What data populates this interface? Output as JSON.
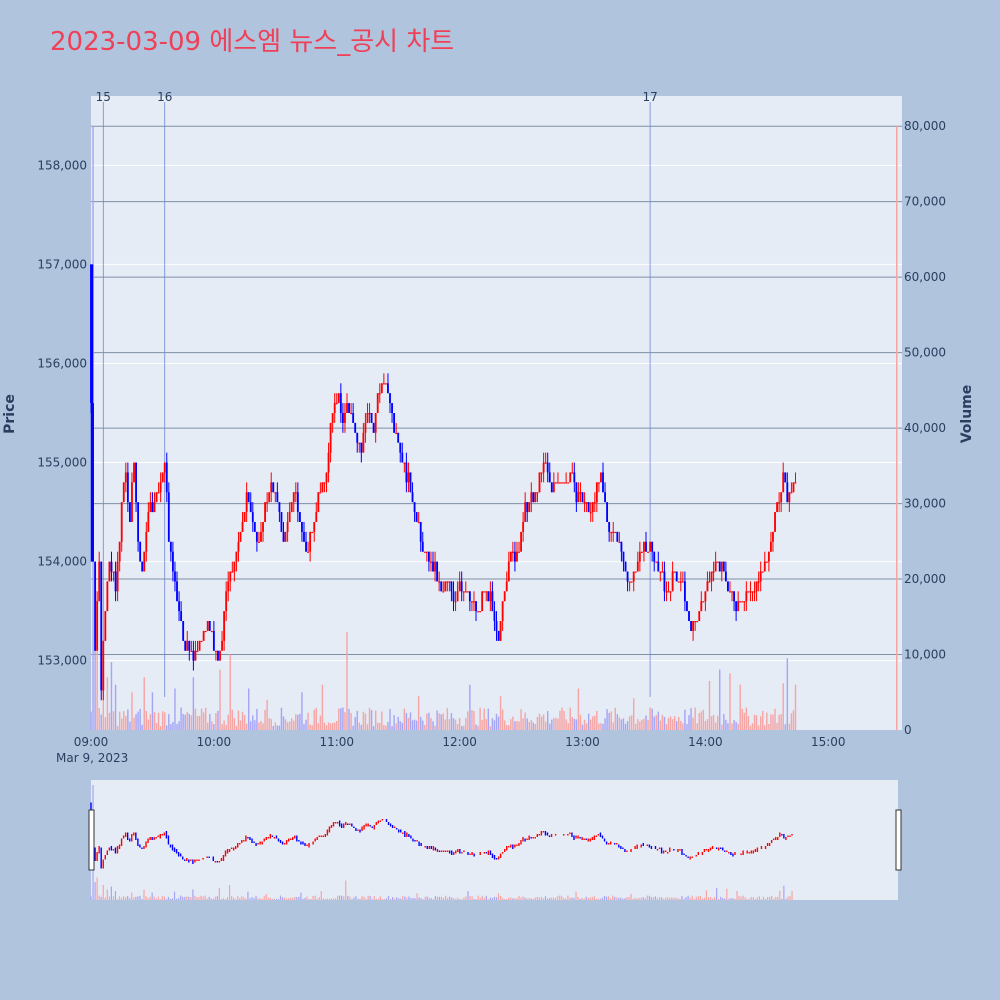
{
  "colors": {
    "page_bg": "#b0c4de",
    "plot_bg": "#e5ecf6",
    "title": "#ef4058",
    "up": "#ff0000",
    "down": "#0000ff",
    "up_volume": "#f6a5a5",
    "down_volume": "#a5a5f6",
    "grid": "#ffffff",
    "volume_grid": "#7f8fa6",
    "marker_line": "#6f86d6"
  },
  "chart_data": {
    "type": "candlestick",
    "title": "2023-03-09 에스엠 뉴스_공시 차트",
    "date_label": "Mar 9, 2023",
    "ylabel": "Price",
    "y2label": "Volume",
    "ylim": [
      152300,
      158700
    ],
    "y2lim": [
      0,
      84000
    ],
    "x_range_minutes": [
      540,
      936
    ],
    "xticks": [
      {
        "minute": 540,
        "label": "09:00"
      },
      {
        "minute": 600,
        "label": "10:00"
      },
      {
        "minute": 660,
        "label": "11:00"
      },
      {
        "minute": 720,
        "label": "12:00"
      },
      {
        "minute": 780,
        "label": "13:00"
      },
      {
        "minute": 840,
        "label": "14:00"
      },
      {
        "minute": 900,
        "label": "15:00"
      }
    ],
    "yticks": [
      {
        "value": 153000,
        "label": "153,000"
      },
      {
        "value": 154000,
        "label": "154,000"
      },
      {
        "value": 155000,
        "label": "155,000"
      },
      {
        "value": 156000,
        "label": "156,000"
      },
      {
        "value": 157000,
        "label": "157,000"
      },
      {
        "value": 158000,
        "label": "158,000"
      }
    ],
    "y2ticks": [
      {
        "value": 0,
        "label": "0"
      },
      {
        "value": 10000,
        "label": "10,000"
      },
      {
        "value": 20000,
        "label": "20,000"
      },
      {
        "value": 30000,
        "label": "30,000"
      },
      {
        "value": 40000,
        "label": "40,000"
      },
      {
        "value": 50000,
        "label": "50,000"
      },
      {
        "value": 60000,
        "label": "60,000"
      },
      {
        "value": 70000,
        "label": "70,000"
      },
      {
        "value": 80000,
        "label": "80,000"
      }
    ],
    "news_markers": [
      {
        "minute": 546,
        "label": "15"
      },
      {
        "minute": 576,
        "label": "16"
      },
      {
        "minute": 813,
        "label": "17"
      }
    ],
    "price_anchors_minute_price": [
      [
        540,
        157000
      ],
      [
        541,
        155600
      ],
      [
        542,
        154000
      ],
      [
        543,
        153200
      ],
      [
        545,
        154000
      ],
      [
        546,
        152700
      ],
      [
        548,
        153600
      ],
      [
        550,
        154000
      ],
      [
        553,
        153700
      ],
      [
        556,
        154600
      ],
      [
        558,
        154900
      ],
      [
        560,
        154400
      ],
      [
        562,
        155000
      ],
      [
        564,
        154200
      ],
      [
        566,
        153800
      ],
      [
        568,
        154400
      ],
      [
        570,
        154600
      ],
      [
        572,
        154600
      ],
      [
        575,
        154800
      ],
      [
        577,
        155000
      ],
      [
        579,
        154300
      ],
      [
        581,
        153900
      ],
      [
        584,
        153500
      ],
      [
        586,
        153200
      ],
      [
        589,
        153100
      ],
      [
        592,
        153100
      ],
      [
        595,
        153200
      ],
      [
        598,
        153400
      ],
      [
        600,
        153200
      ],
      [
        603,
        153000
      ],
      [
        605,
        153300
      ],
      [
        608,
        153800
      ],
      [
        611,
        154000
      ],
      [
        614,
        154300
      ],
      [
        617,
        154700
      ],
      [
        620,
        154400
      ],
      [
        623,
        154200
      ],
      [
        626,
        154500
      ],
      [
        629,
        154800
      ],
      [
        632,
        154600
      ],
      [
        635,
        154200
      ],
      [
        638,
        154500
      ],
      [
        641,
        154700
      ],
      [
        644,
        154300
      ],
      [
        647,
        154100
      ],
      [
        650,
        154500
      ],
      [
        653,
        154700
      ],
      [
        656,
        154900
      ],
      [
        658,
        155300
      ],
      [
        660,
        155600
      ],
      [
        662,
        155700
      ],
      [
        664,
        155400
      ],
      [
        666,
        155600
      ],
      [
        668,
        155500
      ],
      [
        670,
        155300
      ],
      [
        673,
        155100
      ],
      [
        676,
        155500
      ],
      [
        679,
        155400
      ],
      [
        682,
        155700
      ],
      [
        685,
        155800
      ],
      [
        688,
        155500
      ],
      [
        691,
        155200
      ],
      [
        694,
        155000
      ],
      [
        697,
        154700
      ],
      [
        700,
        154400
      ],
      [
        703,
        154100
      ],
      [
        706,
        154000
      ],
      [
        709,
        153900
      ],
      [
        712,
        153700
      ],
      [
        715,
        153800
      ],
      [
        718,
        153600
      ],
      [
        721,
        153800
      ],
      [
        724,
        153700
      ],
      [
        727,
        153600
      ],
      [
        730,
        153500
      ],
      [
        733,
        153700
      ],
      [
        736,
        153600
      ],
      [
        738,
        153300
      ],
      [
        740,
        153200
      ],
      [
        742,
        153600
      ],
      [
        744,
        153900
      ],
      [
        746,
        154100
      ],
      [
        748,
        154000
      ],
      [
        751,
        154300
      ],
      [
        754,
        154600
      ],
      [
        757,
        154600
      ],
      [
        760,
        154800
      ],
      [
        763,
        155000
      ],
      [
        766,
        154700
      ],
      [
        769,
        154800
      ],
      [
        772,
        154800
      ],
      [
        775,
        154900
      ],
      [
        778,
        154700
      ],
      [
        781,
        154600
      ],
      [
        784,
        154500
      ],
      [
        787,
        154700
      ],
      [
        790,
        154800
      ],
      [
        793,
        154400
      ],
      [
        796,
        154300
      ],
      [
        799,
        154200
      ],
      [
        802,
        153900
      ],
      [
        805,
        153800
      ],
      [
        808,
        154000
      ],
      [
        811,
        154200
      ],
      [
        814,
        154100
      ],
      [
        817,
        154000
      ],
      [
        820,
        153800
      ],
      [
        823,
        153700
      ],
      [
        826,
        153900
      ],
      [
        829,
        153800
      ],
      [
        832,
        153500
      ],
      [
        835,
        153300
      ],
      [
        838,
        153500
      ],
      [
        841,
        153700
      ],
      [
        844,
        153900
      ],
      [
        847,
        154000
      ],
      [
        850,
        153900
      ],
      [
        853,
        153700
      ],
      [
        856,
        153500
      ],
      [
        859,
        153600
      ],
      [
        862,
        153700
      ],
      [
        865,
        153800
      ],
      [
        868,
        153900
      ],
      [
        871,
        154000
      ],
      [
        874,
        154300
      ],
      [
        877,
        154700
      ],
      [
        879,
        154900
      ],
      [
        881,
        154600
      ],
      [
        884,
        154800
      ]
    ],
    "volume_spike_minutes": [
      [
        541,
        80000
      ],
      [
        542,
        12000
      ],
      [
        543,
        15000
      ],
      [
        546,
        10000
      ],
      [
        548,
        7000
      ],
      [
        550,
        9000
      ],
      [
        552,
        6000
      ],
      [
        560,
        5000
      ],
      [
        566,
        7000
      ],
      [
        570,
        5000
      ],
      [
        581,
        5500
      ],
      [
        590,
        7000
      ],
      [
        603,
        8000
      ],
      [
        608,
        10000
      ],
      [
        617,
        5500
      ],
      [
        626,
        4000
      ],
      [
        643,
        5000
      ],
      [
        653,
        6000
      ],
      [
        665,
        13000
      ],
      [
        700,
        4500
      ],
      [
        725,
        6000
      ],
      [
        740,
        4500
      ],
      [
        778,
        5500
      ],
      [
        805,
        4200
      ],
      [
        842,
        6500
      ],
      [
        847,
        8000
      ],
      [
        852,
        7500
      ],
      [
        857,
        6000
      ],
      [
        878,
        6200
      ],
      [
        880,
        9500
      ],
      [
        884,
        6000
      ],
      [
        936,
        80000
      ]
    ],
    "zoom_window_minutes": [
      540,
      936
    ]
  }
}
